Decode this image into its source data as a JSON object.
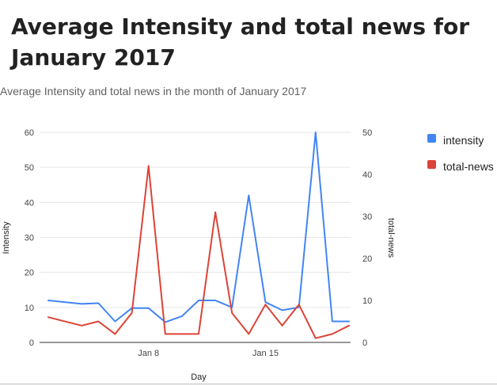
{
  "page": {
    "title": "Average Intensity and total news for January 2017"
  },
  "chart_data": {
    "type": "line",
    "subtitle": "Average Intensity and total news in the month of January 2017",
    "xlabel": "Day",
    "ylabel_left": "Intensity",
    "ylabel_right": "total-news",
    "ylim_left": [
      0,
      60
    ],
    "ylim_right": [
      0,
      50
    ],
    "yticks_left": [
      "0",
      "10",
      "20",
      "30",
      "40",
      "50",
      "60"
    ],
    "yticks_right": [
      "0",
      "10",
      "20",
      "30",
      "40",
      "50"
    ],
    "xlim": [
      "2017-01-02",
      "2017-01-20"
    ],
    "xticks": [
      {
        "date": "2017-01-08",
        "label": "Jan 8"
      },
      {
        "date": "2017-01-15",
        "label": "Jan 15"
      }
    ],
    "grid": true,
    "legend_position": "right",
    "x": [
      "2017-01-02",
      "2017-01-04",
      "2017-01-05",
      "2017-01-06",
      "2017-01-07",
      "2017-01-08",
      "2017-01-09",
      "2017-01-10",
      "2017-01-11",
      "2017-01-12",
      "2017-01-13",
      "2017-01-14",
      "2017-01-15",
      "2017-01-16",
      "2017-01-17",
      "2017-01-18",
      "2017-01-19",
      "2017-01-20"
    ],
    "series": [
      {
        "name": "intensity",
        "axis": "left",
        "color": "#4285f4",
        "values": [
          12,
          11,
          11.2,
          6,
          9.8,
          9.8,
          5.8,
          7.5,
          12,
          12,
          10,
          42,
          11.5,
          9.2,
          10,
          60,
          6,
          6
        ]
      },
      {
        "name": "total-news",
        "axis": "right",
        "color": "#db4437",
        "values": [
          6,
          4,
          5,
          2,
          7,
          42,
          2,
          2,
          2,
          31,
          7,
          2,
          9,
          4,
          9,
          1,
          2,
          4
        ]
      }
    ]
  }
}
